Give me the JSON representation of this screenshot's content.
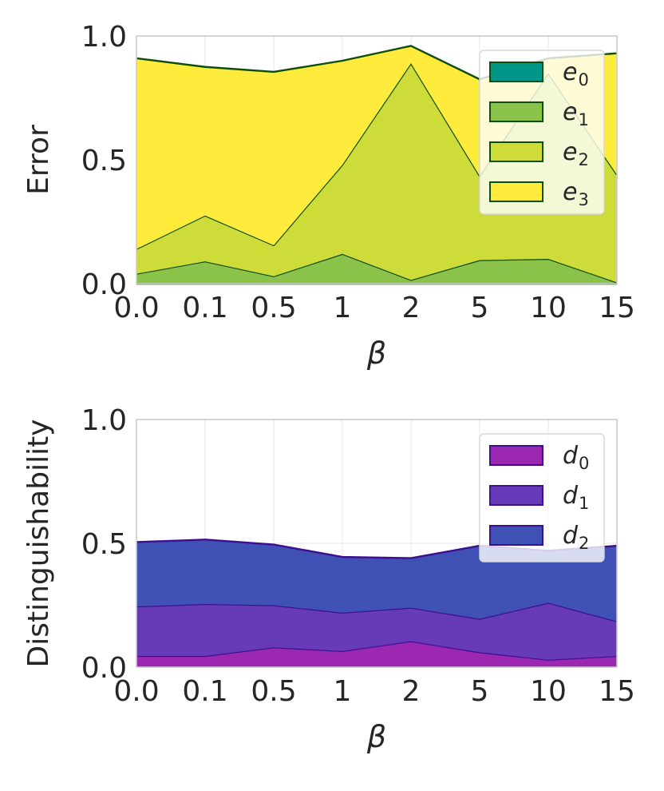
{
  "chart_data": [
    {
      "type": "area",
      "stacked": true,
      "xlabel": "β",
      "ylabel": "Error",
      "ylim": [
        0,
        1
      ],
      "categories": [
        "0.0",
        "0.1",
        "0.5",
        "1",
        "2",
        "5",
        "10",
        "15"
      ],
      "yticks": [
        "0.0",
        "0.5",
        "1.0"
      ],
      "legend_position": "top-right",
      "series": [
        {
          "name": "e",
          "sub": "0",
          "color": "#009688",
          "values": [
            0.0,
            0.0,
            0.0,
            0.0,
            0.0,
            0.0,
            0.0,
            0.0
          ]
        },
        {
          "name": "e",
          "sub": "1",
          "color": "#8bc34a",
          "values": [
            0.04,
            0.09,
            0.03,
            0.12,
            0.015,
            0.095,
            0.1,
            0.005
          ]
        },
        {
          "name": "e",
          "sub": "2",
          "color": "#cddc39",
          "values": [
            0.1,
            0.185,
            0.125,
            0.36,
            0.875,
            0.34,
            0.75,
            0.435
          ]
        },
        {
          "name": "e",
          "sub": "3",
          "color": "#ffeb3b",
          "values": [
            0.77,
            0.6,
            0.7,
            0.42,
            0.07,
            0.39,
            0.06,
            0.49
          ]
        }
      ]
    },
    {
      "type": "area",
      "stacked": true,
      "xlabel": "β",
      "ylabel": "Distinguishability",
      "ylim": [
        0,
        1
      ],
      "categories": [
        "0.0",
        "0.1",
        "0.5",
        "1",
        "2",
        "5",
        "10",
        "15"
      ],
      "yticks": [
        "0.0",
        "0.5",
        "1.0"
      ],
      "legend_position": "top-right",
      "series": [
        {
          "name": "d",
          "sub": "0",
          "color": "#9c27b0",
          "values": [
            0.045,
            0.045,
            0.08,
            0.065,
            0.105,
            0.06,
            0.03,
            0.045
          ]
        },
        {
          "name": "d",
          "sub": "1",
          "color": "#673ab7",
          "values": [
            0.2,
            0.21,
            0.17,
            0.155,
            0.135,
            0.135,
            0.23,
            0.14
          ]
        },
        {
          "name": "d",
          "sub": "2",
          "color": "#3f51b5",
          "values": [
            0.26,
            0.26,
            0.245,
            0.225,
            0.2,
            0.295,
            0.21,
            0.305
          ]
        }
      ]
    }
  ]
}
